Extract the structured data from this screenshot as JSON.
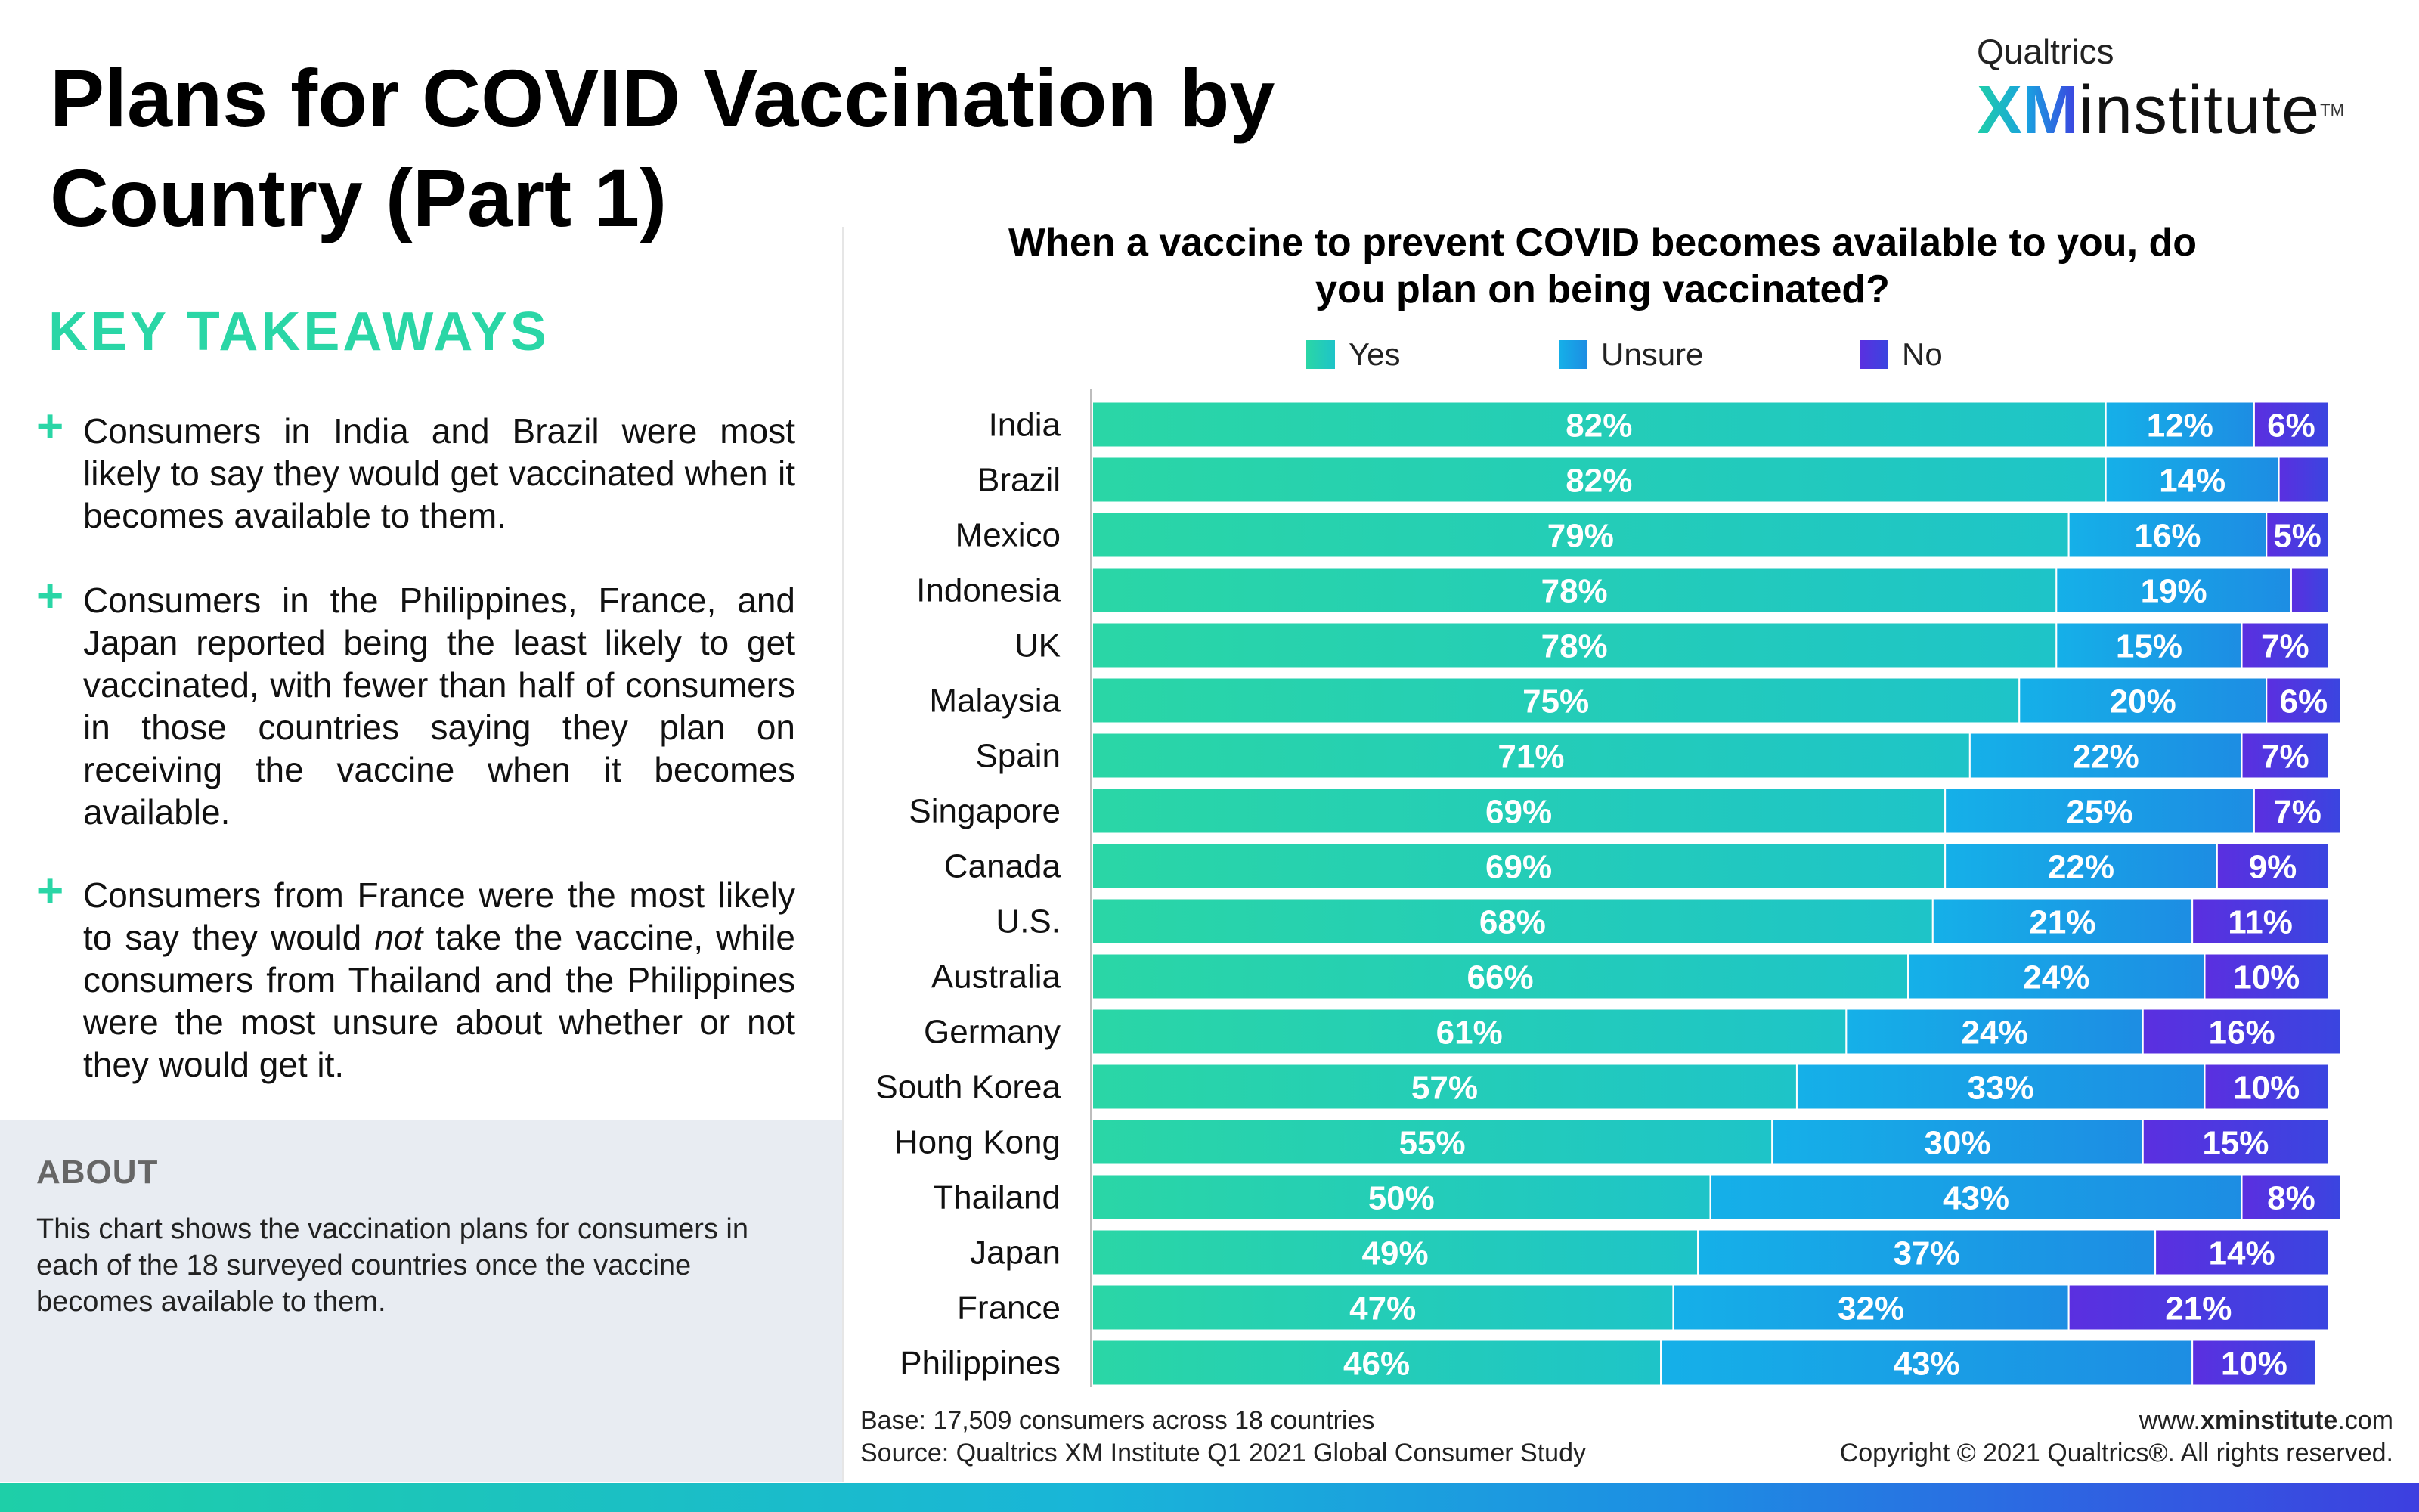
{
  "page": {
    "title": "Plans for COVID Vaccination by Country (Part 1)",
    "brand": {
      "top": "Qualtrics",
      "xm": "XM",
      "institute": "institute",
      "tm": "TM"
    },
    "key_takeaways": {
      "heading": "KEY TAKEAWAYS",
      "items": [
        "Consumers in India and Brazil were most likely to say they would get vaccinated when it becomes available to them.",
        "Consumers in the Philippines, France, and Japan reported being the least likely to get vaccinated, with fewer than half of consumers in those countries saying they plan on receiving the vaccine when it becomes available.",
        {
          "before": "Consumers from France were the most likely to say they would ",
          "emphasis": "not",
          "after": " take the vaccine, while consumers from Thailand and the Philippines were the most unsure about whether or not they would get it."
        }
      ]
    },
    "about": {
      "heading": "ABOUT",
      "text": "This chart shows the vaccination plans for consumers in each of the 18 surveyed countries once the vaccine becomes available to them."
    },
    "footer": {
      "base": "Base: 17,509 consumers across 18 countries",
      "source": "Source: Qualtrics XM Institute Q1 2021 Global Consumer Study",
      "site_pre": "www.",
      "site_bold": "xminstitute",
      "site_post": ".com",
      "copyright": "Copyright © 2021 Qualtrics®. All rights reserved."
    }
  },
  "colors": {
    "yes": [
      "#2ad6a6",
      "#1ec4c8"
    ],
    "unsure": [
      "#15b0e8",
      "#1d8de3"
    ],
    "no": [
      "#5b2fe0",
      "#3a45e0"
    ],
    "accent": "#2ad6a6"
  },
  "chart_data": {
    "type": "bar",
    "orientation": "horizontal",
    "stacked": true,
    "title": "When a vaccine to prevent COVID becomes available to you, do you plan on being vaccinated?",
    "categories": [
      "India",
      "Brazil",
      "Mexico",
      "Indonesia",
      "UK",
      "Malaysia",
      "Spain",
      "Singapore",
      "Canada",
      "U.S.",
      "Australia",
      "Germany",
      "South Korea",
      "Hong Kong",
      "Thailand",
      "Japan",
      "France",
      "Philippines"
    ],
    "series": [
      {
        "name": "Yes",
        "values": [
          82,
          82,
          79,
          78,
          78,
          75,
          71,
          69,
          69,
          68,
          66,
          61,
          57,
          55,
          50,
          49,
          47,
          46
        ]
      },
      {
        "name": "Unsure",
        "values": [
          12,
          14,
          16,
          19,
          15,
          20,
          22,
          25,
          22,
          21,
          24,
          24,
          33,
          30,
          43,
          37,
          32,
          43
        ]
      },
      {
        "name": "No",
        "values": [
          6,
          4,
          5,
          3,
          7,
          6,
          7,
          7,
          9,
          11,
          10,
          16,
          10,
          15,
          8,
          14,
          21,
          10
        ]
      }
    ],
    "hidden_labels": {
      "No": [
        "Brazil",
        "Indonesia"
      ]
    },
    "value_suffix": "%",
    "legend_position": "top",
    "xlim": [
      0,
      100
    ]
  }
}
